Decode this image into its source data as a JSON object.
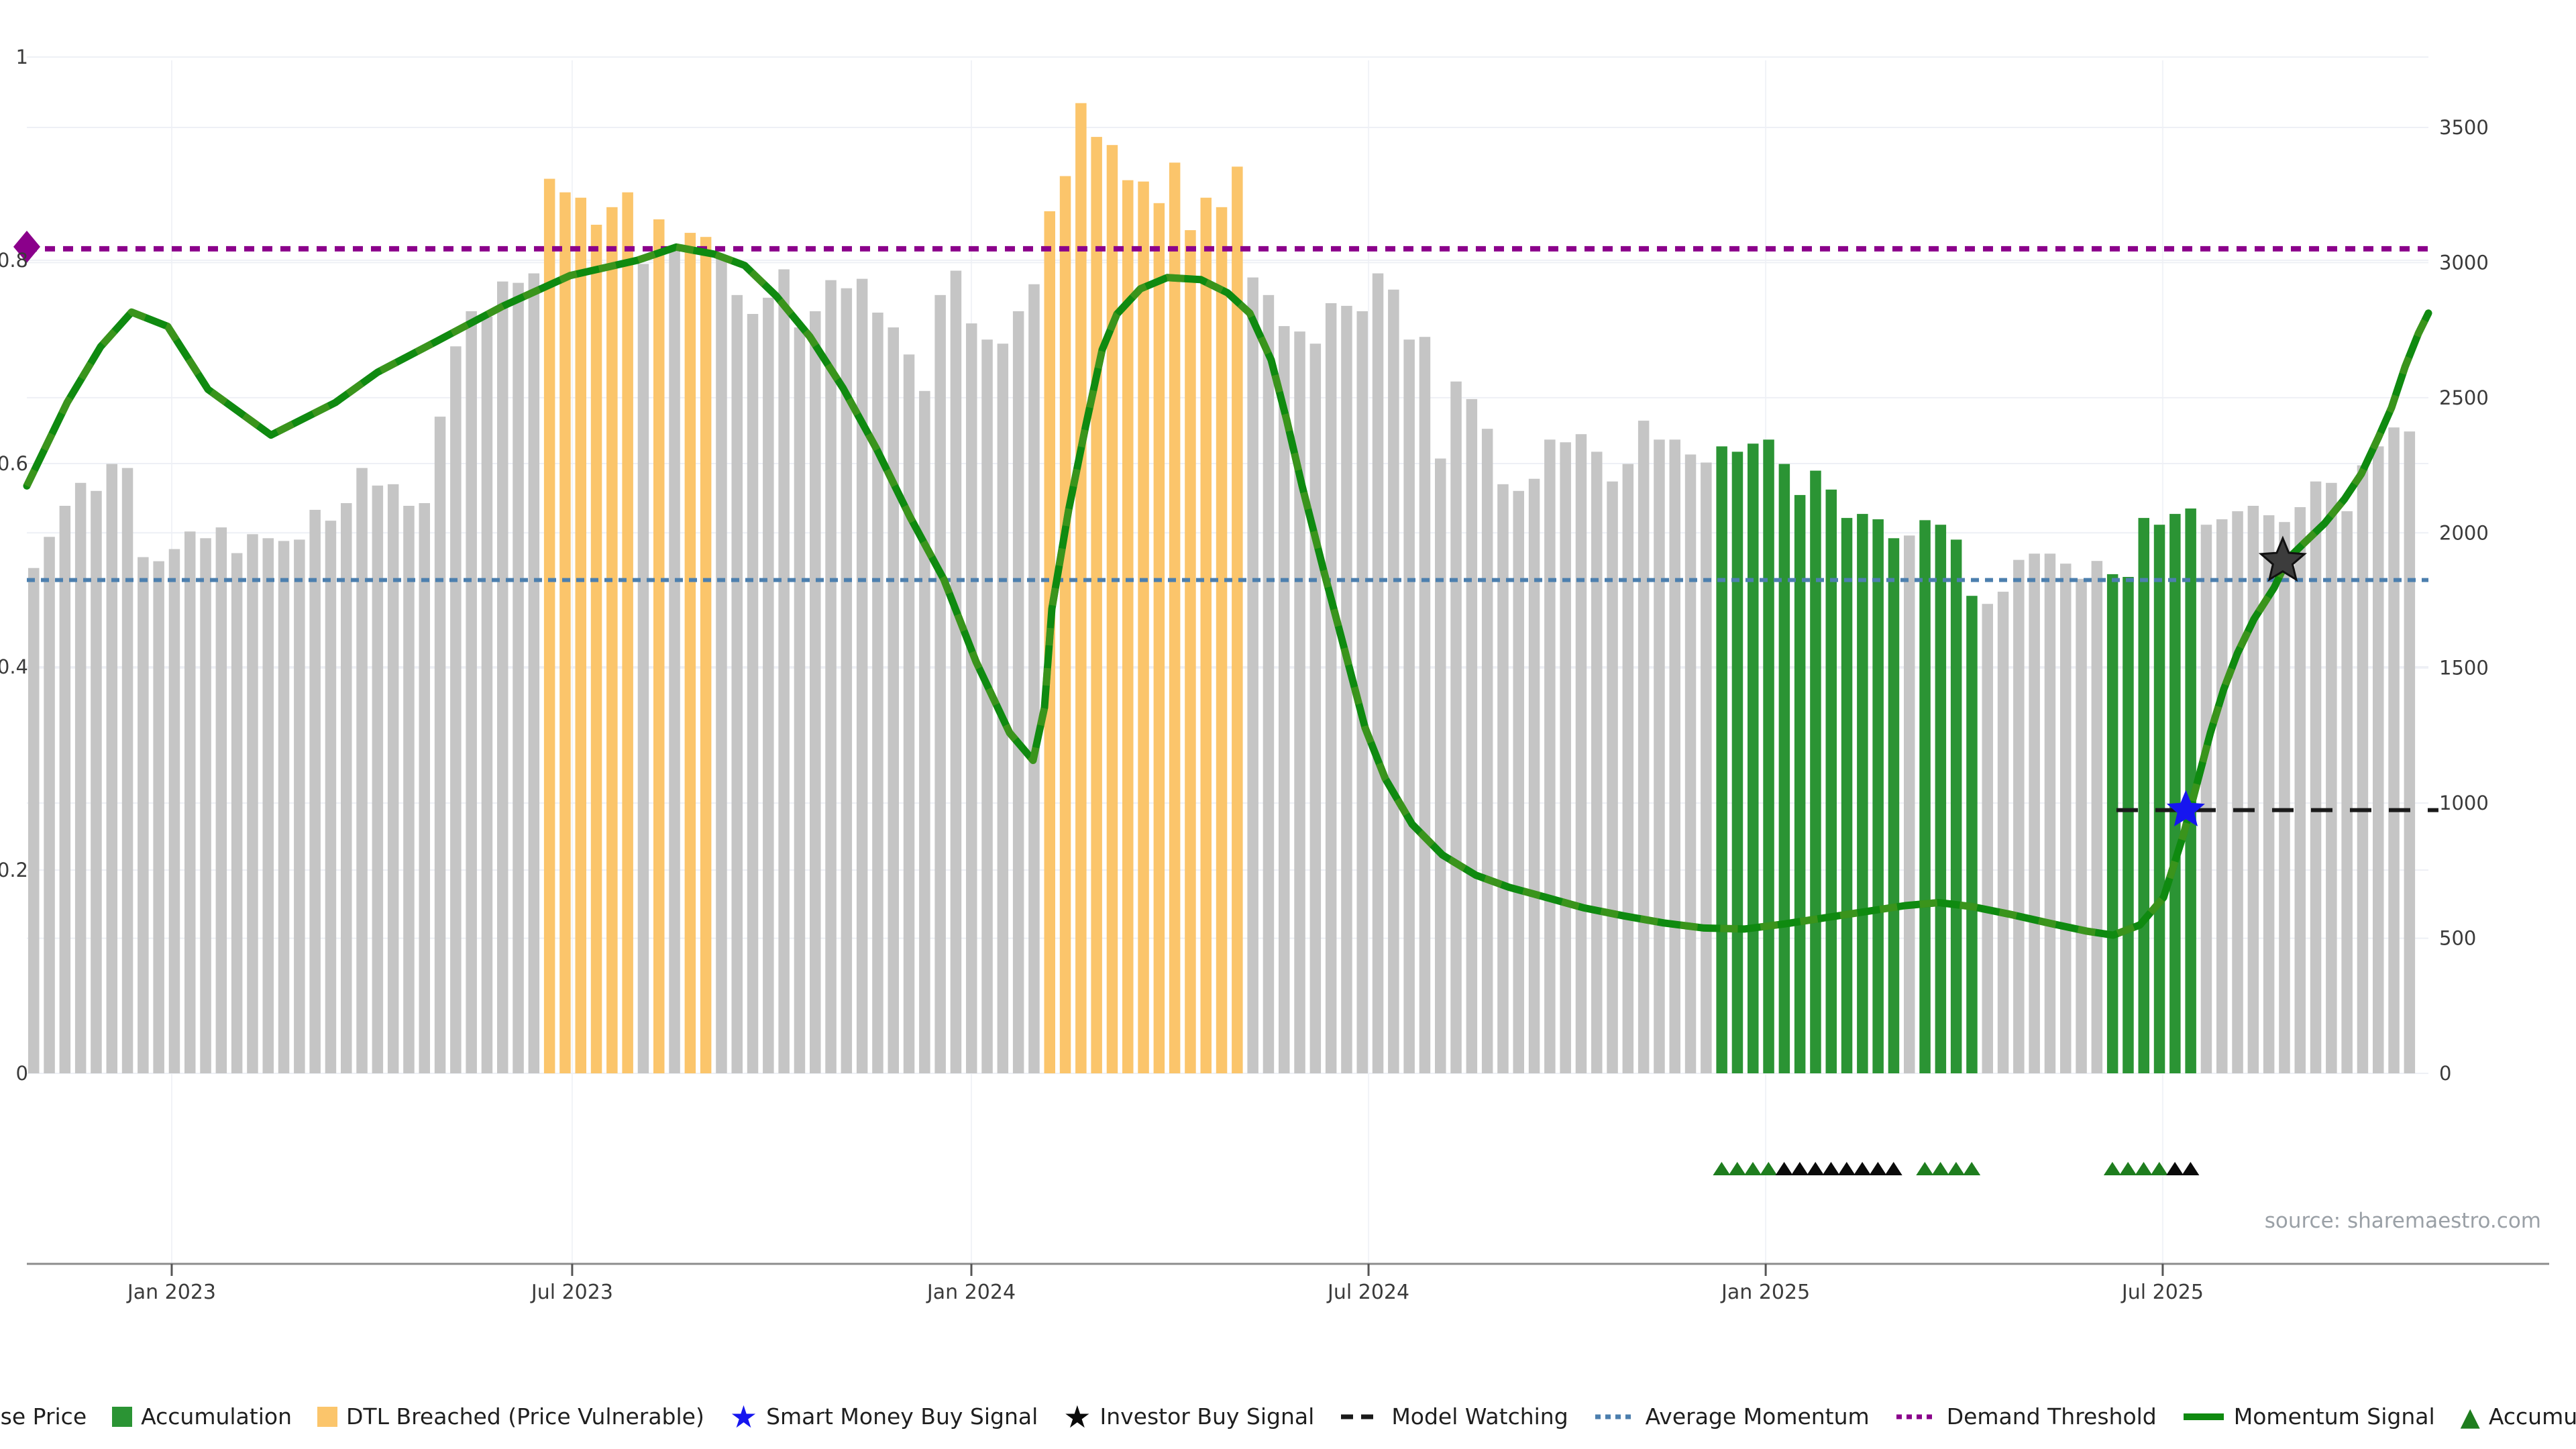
{
  "source_note": "source: sharemaestro.com",
  "colors": {
    "close_price_bar": "#c5c5c5",
    "accumulation_bar": "#2b9434",
    "dtl_breached_bar": "#fbc56b",
    "momentum_line": "#0f8a10",
    "momentum_line_overlay": "#5f9c27",
    "demand_threshold": "#8b008b",
    "average_momentum": "#4c7fae",
    "model_watching": "#1a1a1a",
    "smart_money_star": "#1616ef",
    "investor_star": "#3c3c3c",
    "triangle_green": "#1e7d1e",
    "triangle_black": "#0a0a0a",
    "grid": "#eef0f5",
    "axis_line": "#8c8c8c",
    "tick_text": "#3b3b3b"
  },
  "legend": {
    "items": [
      {
        "type": "square",
        "color": "#c5c5c5",
        "label": "Close Price"
      },
      {
        "type": "square",
        "color": "#2b9434",
        "label": "Accumulation"
      },
      {
        "type": "square",
        "color": "#fbc56b",
        "label": "DTL Breached (Price Vulnerable)"
      },
      {
        "type": "star",
        "color": "#1616ef",
        "label": "Smart Money Buy Signal"
      },
      {
        "type": "star",
        "color": "#0a0a0a",
        "label": "Investor Buy Signal"
      },
      {
        "type": "dash",
        "color": "#1a1a1a",
        "label": "Model Watching"
      },
      {
        "type": "dots",
        "color": "#4c7fae",
        "label": "Average Momentum"
      },
      {
        "type": "dots",
        "color": "#8b008b",
        "label": "Demand Threshold"
      },
      {
        "type": "line",
        "color": "#0f8a10",
        "label": "Momentum Signal"
      },
      {
        "type": "triangle",
        "color": "#1e7d1e",
        "label": "Accumulation"
      }
    ]
  },
  "chart_data": {
    "type": "bar",
    "title": "",
    "xlabel": "",
    "ylabel_left": "",
    "ylabel_right": "",
    "left_axis": {
      "range": [
        0,
        1
      ],
      "ticks": [
        {
          "v": 1,
          "label": "1"
        },
        {
          "v": 0.8,
          "label": "0.8"
        },
        {
          "v": 0.6,
          "label": "0.6"
        },
        {
          "v": 0.4,
          "label": "0.4"
        },
        {
          "v": 0.2,
          "label": "0.2"
        },
        {
          "v": 0,
          "label": "0"
        }
      ]
    },
    "right_axis": {
      "range": [
        0,
        3500
      ],
      "ticks": [
        {
          "r": 3500,
          "label": "3500"
        },
        {
          "r": 3000,
          "label": "3000"
        },
        {
          "r": 2500,
          "label": "2500"
        },
        {
          "r": 2000,
          "label": "2000"
        },
        {
          "r": 1500,
          "label": "1500"
        },
        {
          "r": 1000,
          "label": "1000"
        },
        {
          "r": 500,
          "label": "500"
        },
        {
          "r": 0,
          "label": "0"
        }
      ]
    },
    "x_axis": {
      "interval": "weekly",
      "ticks": [
        {
          "u": 8.84,
          "label": "Jan 2023"
        },
        {
          "u": 34.46,
          "label": "Jul 2023"
        },
        {
          "u": 60.0,
          "label": "Jan 2024"
        },
        {
          "u": 85.41,
          "label": "Jul 2024"
        },
        {
          "u": 110.82,
          "label": "Jan 2025"
        },
        {
          "u": 136.22,
          "label": "Jul 2025"
        }
      ]
    },
    "bars": {
      "series_name": "Close Price",
      "values": [
        1870,
        1985,
        2100,
        2185,
        2155,
        2255,
        2240,
        1910,
        1895,
        1940,
        2005,
        1980,
        2020,
        1925,
        1995,
        1980,
        1970,
        1975,
        2085,
        2045,
        2110,
        2240,
        2175,
        2180,
        2100,
        2110,
        2430,
        2690,
        2820,
        2800,
        2930,
        2925,
        2960,
        3310,
        3260,
        3240,
        3140,
        3205,
        3260,
        2995,
        3160,
        3045,
        3110,
        3095,
        3015,
        2880,
        2810,
        2870,
        2975,
        2760,
        2820,
        2935,
        2905,
        2940,
        2815,
        2760,
        2660,
        2525,
        2880,
        2970,
        2775,
        2715,
        2700,
        2820,
        2920,
        3190,
        3320,
        3590,
        3465,
        3435,
        3305,
        3300,
        3220,
        3370,
        3120,
        3240,
        3205,
        3355,
        2945,
        2880,
        2765,
        2745,
        2700,
        2850,
        2840,
        2820,
        2960,
        2900,
        2715,
        2725,
        2275,
        2560,
        2495,
        2385,
        2180,
        2155,
        2200,
        2345,
        2335,
        2365,
        2300,
        2190,
        2255,
        2415,
        2345,
        2345,
        2290,
        2260,
        2320,
        2300,
        2330,
        2345,
        2255,
        2140,
        2230,
        2160,
        2055,
        2070,
        2050,
        1980,
        1990,
        2047,
        2030,
        1975,
        1767,
        1737,
        1782,
        1900,
        1923,
        1923,
        1886,
        1830,
        1896,
        1847,
        1837,
        2055,
        2030,
        2070,
        2090,
        2030,
        2050,
        2080,
        2100,
        2065,
        2040,
        2095,
        2190,
        2185,
        2080,
        2250,
        2320,
        2390,
        2375
      ],
      "dtl_breached_indices": [
        33,
        34,
        35,
        36,
        37,
        38,
        40,
        42,
        43,
        65,
        66,
        67,
        68,
        69,
        70,
        71,
        72,
        73,
        74,
        75,
        76,
        77
      ],
      "accumulation_indices": [
        108,
        109,
        110,
        111,
        112,
        113,
        114,
        115,
        116,
        117,
        118,
        119,
        121,
        122,
        123,
        124,
        133,
        134,
        135,
        136,
        137,
        138
      ]
    },
    "momentum_signal": {
      "points": [
        [
          -0.43,
          0.578
        ],
        [
          2.15,
          0.66
        ],
        [
          4.29,
          0.715
        ],
        [
          6.27,
          0.749
        ],
        [
          8.58,
          0.735
        ],
        [
          11.16,
          0.673
        ],
        [
          15.19,
          0.628
        ],
        [
          19.31,
          0.66
        ],
        [
          22.02,
          0.69
        ],
        [
          25.75,
          0.72
        ],
        [
          30.04,
          0.755
        ],
        [
          34.33,
          0.785
        ],
        [
          38.63,
          0.8
        ],
        [
          41.12,
          0.813
        ],
        [
          43.56,
          0.806
        ],
        [
          45.49,
          0.795
        ],
        [
          47.51,
          0.765
        ],
        [
          49.66,
          0.725
        ],
        [
          51.8,
          0.674
        ],
        [
          53.95,
          0.614
        ],
        [
          56.09,
          0.547
        ],
        [
          58.24,
          0.486
        ],
        [
          60.3,
          0.405
        ],
        [
          62.45,
          0.335
        ],
        [
          63.95,
          0.308
        ],
        [
          64.68,
          0.36
        ],
        [
          65.15,
          0.457
        ],
        [
          66.22,
          0.554
        ],
        [
          67.3,
          0.636
        ],
        [
          68.37,
          0.712
        ],
        [
          69.31,
          0.747
        ],
        [
          70.82,
          0.772
        ],
        [
          72.53,
          0.783
        ],
        [
          74.68,
          0.781
        ],
        [
          76.39,
          0.768
        ],
        [
          77.81,
          0.748
        ],
        [
          79.18,
          0.702
        ],
        [
          80.17,
          0.643
        ],
        [
          81.16,
          0.578
        ],
        [
          82.62,
          0.49
        ],
        [
          83.91,
          0.415
        ],
        [
          85.19,
          0.34
        ],
        [
          86.48,
          0.29
        ],
        [
          88.2,
          0.245
        ],
        [
          90.13,
          0.215
        ],
        [
          92.27,
          0.195
        ],
        [
          94.42,
          0.183
        ],
        [
          96.57,
          0.174
        ],
        [
          99.14,
          0.163
        ],
        [
          101.72,
          0.155
        ],
        [
          104.29,
          0.148
        ],
        [
          106.87,
          0.143
        ],
        [
          109.44,
          0.142
        ],
        [
          112.02,
          0.147
        ],
        [
          114.59,
          0.153
        ],
        [
          117.17,
          0.159
        ],
        [
          119.74,
          0.165
        ],
        [
          121.89,
          0.168
        ],
        [
          124.03,
          0.164
        ],
        [
          126.61,
          0.156
        ],
        [
          129.18,
          0.147
        ],
        [
          131.33,
          0.14
        ],
        [
          133.05,
          0.136
        ],
        [
          134.76,
          0.146
        ],
        [
          136.27,
          0.173
        ],
        [
          137.55,
          0.235
        ],
        [
          138.41,
          0.285
        ],
        [
          139.27,
          0.335
        ],
        [
          140.13,
          0.378
        ],
        [
          140.99,
          0.413
        ],
        [
          142.06,
          0.447
        ],
        [
          143.35,
          0.478
        ],
        [
          144.21,
          0.506
        ],
        [
          145.28,
          0.522
        ],
        [
          146.57,
          0.541
        ],
        [
          147.85,
          0.565
        ],
        [
          148.93,
          0.59
        ],
        [
          150.0,
          0.625
        ],
        [
          150.86,
          0.655
        ],
        [
          151.72,
          0.695
        ],
        [
          152.58,
          0.728
        ],
        [
          153.22,
          0.748
        ]
      ]
    },
    "reference_lines": {
      "demand_threshold_value": 0.81,
      "average_momentum_value": 0.49,
      "model_watching": {
        "value": 0.259,
        "u_start": 133.26,
        "u_end": 153.86
      }
    },
    "markers": {
      "demand_diamond": {
        "u": -0.43,
        "value": 0.812
      },
      "smart_money_buy_signal": {
        "u": 137.7,
        "value": 0.259
      },
      "investor_buy_signal": {
        "u": 143.9,
        "value": 0.504
      },
      "accumulation_triangles_green": [
        108,
        109,
        110,
        111,
        121,
        122,
        123,
        124,
        133,
        134,
        135,
        136
      ],
      "accumulation_triangles_black": [
        112,
        113,
        114,
        115,
        116,
        117,
        118,
        119,
        137,
        138
      ]
    }
  }
}
